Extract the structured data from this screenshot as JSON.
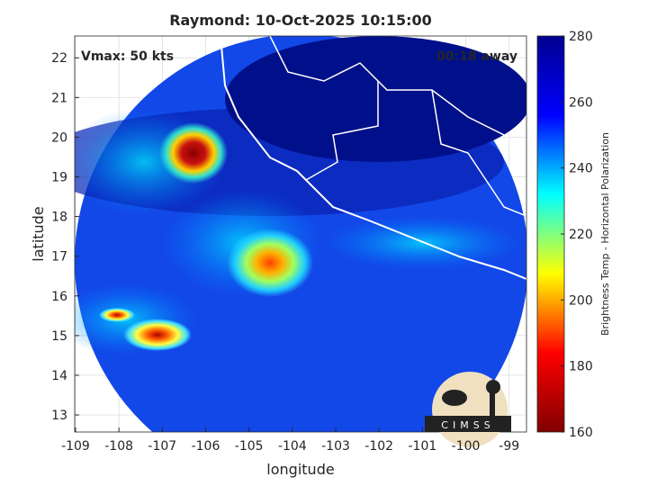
{
  "chart_data": {
    "type": "map",
    "title": "Raymond: 10-Oct-2025 10:15:00",
    "xlabel": "longitude",
    "ylabel": "latitude",
    "xlim": [
      -109.02,
      -98.6
    ],
    "ylim": [
      12.57,
      22.55
    ],
    "xticks": [
      -109,
      -108,
      -107,
      -106,
      -105,
      -104,
      -103,
      -102,
      -101,
      -100,
      -99
    ],
    "yticks": [
      13,
      14,
      15,
      16,
      17,
      18,
      19,
      20,
      21,
      22
    ],
    "grid": true,
    "annotations": [
      "Vmax: 50 kts",
      "00:18 away"
    ],
    "colorbar": {
      "label": "Brightness Temp - Horizontal Polarization",
      "lim": [
        160,
        280
      ],
      "ticks": [
        160,
        180,
        200,
        220,
        240,
        260,
        280
      ],
      "colors": [
        "#800000",
        "#ff0000",
        "#ffff00",
        "#00ffff",
        "#0000ff",
        "#00008f"
      ]
    },
    "logo": "CIMSS"
  }
}
